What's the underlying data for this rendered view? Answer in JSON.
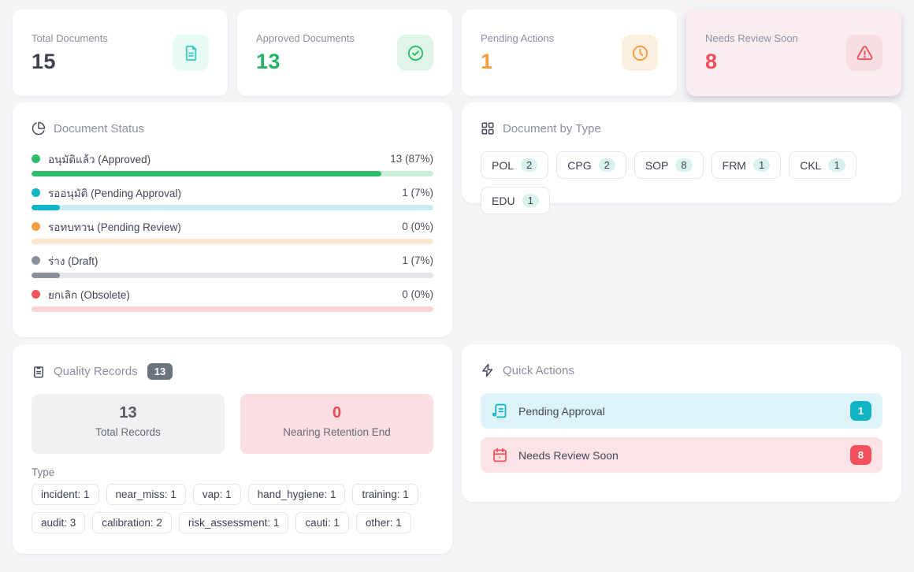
{
  "stat_cards": [
    {
      "label": "Total Documents",
      "value": "15",
      "value_color": "#3d4152",
      "icon": "file-icon",
      "icon_color": "#3ecfc2",
      "icon_bg": "#e7faf6",
      "card_bg": "#ffffff",
      "highlight": false
    },
    {
      "label": "Approved Documents",
      "value": "13",
      "value_color": "#24b263",
      "icon": "check-circle-icon",
      "icon_color": "#2ebd6b",
      "icon_bg": "#def5e7",
      "card_bg": "#ffffff",
      "highlight": false
    },
    {
      "label": "Pending Actions",
      "value": "1",
      "value_color": "#f59e42",
      "icon": "clock-icon",
      "icon_color": "#f59e42",
      "icon_bg": "#fdf0e0",
      "card_bg": "#ffffff",
      "highlight": false
    },
    {
      "label": "Needs Review Soon",
      "value": "8",
      "value_color": "#f24f5b",
      "icon": "warning-triangle-icon",
      "icon_color": "#f24f5b",
      "icon_bg": "#f8dee3",
      "card_bg": "#f9edf0",
      "highlight": true
    }
  ],
  "document_status": {
    "title": "Document Status",
    "rows": [
      {
        "label": "อนุมัติแล้ว (Approved)",
        "value_text": "13 (87%)",
        "count": 13,
        "percent": 87,
        "color": "#2ebd6b",
        "track_color": "#c9efd8"
      },
      {
        "label": "รออนุมัติ (Pending Approval)",
        "value_text": "1 (7%)",
        "count": 1,
        "percent": 7,
        "color": "#12b4c6",
        "track_color": "#c8ecf3"
      },
      {
        "label": "รอทบทวน (Pending Review)",
        "value_text": "0 (0%)",
        "count": 0,
        "percent": 0,
        "color": "#f59e42",
        "track_color": "#fce8cf"
      },
      {
        "label": "ร่าง (Draft)",
        "value_text": "1 (7%)",
        "count": 1,
        "percent": 7,
        "color": "#8a909b",
        "track_color": "#e5e6ea"
      },
      {
        "label": "ยกเลิก (Obsolete)",
        "value_text": "0 (0%)",
        "count": 0,
        "percent": 0,
        "color": "#f4515c",
        "track_color": "#fbd4d7"
      }
    ]
  },
  "document_by_type": {
    "title": "Document by Type",
    "count_bg": "#d9f2ef",
    "chips": [
      {
        "label": "POL",
        "count": "2"
      },
      {
        "label": "CPG",
        "count": "2"
      },
      {
        "label": "SOP",
        "count": "8"
      },
      {
        "label": "FRM",
        "count": "1"
      },
      {
        "label": "CKL",
        "count": "1"
      },
      {
        "label": "EDU",
        "count": "1"
      }
    ]
  },
  "quality_records": {
    "title": "Quality Records",
    "badge": "13",
    "stats": [
      {
        "value": "13",
        "label": "Total Records",
        "value_color": "#565b66",
        "bg": "#f1f1f4"
      },
      {
        "value": "0",
        "label": "Nearing Retention End",
        "value_color": "#ee4956",
        "bg": "#fcdfe2"
      }
    ],
    "type_label": "Type",
    "type_chips": [
      "incident: 1",
      "near_miss: 1",
      "vap: 1",
      "hand_hygiene: 1",
      "training: 1",
      "audit: 3",
      "calibration: 2",
      "risk_assessment: 1",
      "cauti: 1",
      "other: 1"
    ]
  },
  "quick_actions": {
    "title": "Quick Actions",
    "items": [
      {
        "label": "Pending Approval",
        "badge": "1",
        "bg": "#def3f8",
        "accent": "#0fb4c4",
        "icon": "scroll-icon"
      },
      {
        "label": "Needs Review Soon",
        "badge": "8",
        "bg": "#fde3e5",
        "accent": "#f4515c",
        "icon": "calendar-icon"
      }
    ]
  }
}
